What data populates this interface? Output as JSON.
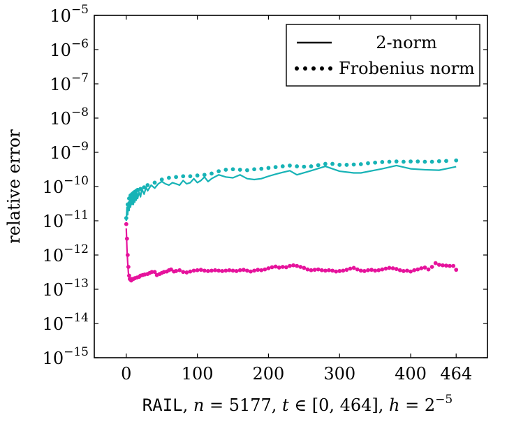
{
  "chart_data": {
    "type": "line",
    "yscale": "log",
    "xlim": [
      -45,
      508
    ],
    "ylim_exponents": [
      -15,
      -5
    ],
    "x_ticks": [
      0,
      100,
      200,
      300,
      400,
      464
    ],
    "x_tick_labels": [
      "0",
      "100",
      "200",
      "300",
      "400",
      "464"
    ],
    "y_tick_exponents": [
      -15,
      -14,
      -13,
      -12,
      -11,
      -10,
      -9,
      -8,
      -7,
      -6,
      -5
    ],
    "y_tick_labels": [
      "−15",
      "−14",
      "−13",
      "−12",
      "−11",
      "−10",
      "−9",
      "−8",
      "−7",
      "−6",
      "−5"
    ],
    "y_tick_base": "10",
    "ylabel": "relative error",
    "xlabel": {
      "code": "RAIL",
      "n_var": "n",
      "n_rest": " = 5177, ",
      "t_var": "t",
      "t_rest": " ∈ [0, 464], ",
      "h_var": "h",
      "h_rest": " = 2",
      "h_exp": "−5"
    },
    "legend": {
      "position": "top-right",
      "entries": [
        {
          "label": "2-norm",
          "style": "solid"
        },
        {
          "label": "Frobenius norm",
          "style": "dotted"
        }
      ]
    },
    "series": [
      {
        "color": "#17b3b6",
        "style": "solid",
        "x": [
          0,
          1,
          2,
          3,
          4,
          5,
          6,
          7,
          8,
          9,
          10,
          11,
          12,
          13,
          14,
          15,
          16,
          18,
          20,
          22,
          25,
          28,
          30,
          35,
          40,
          45,
          50,
          55,
          60,
          65,
          70,
          75,
          80,
          85,
          90,
          95,
          100,
          105,
          110,
          115,
          120,
          130,
          140,
          150,
          160,
          170,
          180,
          190,
          200,
          210,
          220,
          230,
          240,
          260,
          280,
          300,
          320,
          330,
          360,
          380,
          400,
          420,
          440,
          464
        ],
        "y": [
          1e-11,
          2.5e-11,
          1.5e-11,
          3.5e-11,
          2e-11,
          4.5e-11,
          2.5e-11,
          5e-11,
          3e-11,
          5.5e-11,
          3e-11,
          6e-11,
          3.5e-11,
          6.5e-11,
          4e-11,
          6.5e-11,
          4.5e-11,
          7e-11,
          5e-11,
          8.5e-11,
          6e-11,
          9.5e-11,
          7.5e-11,
          1.1e-10,
          9e-11,
          1.2e-10,
          1.4e-10,
          1.2e-10,
          1.1e-10,
          1.3e-10,
          1.2e-10,
          1.1e-10,
          1.5e-10,
          1.2e-10,
          1.3e-10,
          1.7e-10,
          1.3e-10,
          1.5e-10,
          1.9e-10,
          1.4e-10,
          1.7e-10,
          2.2e-10,
          1.9e-10,
          1.8e-10,
          2.2e-10,
          1.7e-10,
          1.6e-10,
          1.7e-10,
          2e-10,
          2.3e-10,
          2.6e-10,
          2.9e-10,
          2.2e-10,
          2.9e-10,
          3.9e-10,
          2.8e-10,
          2.5e-10,
          2.5e-10,
          3.3e-10,
          4.1e-10,
          3.3e-10,
          3.1e-10,
          3e-10,
          3.8e-10
        ]
      },
      {
        "color": "#17b3b6",
        "style": "dotted",
        "x": [
          0,
          2,
          4,
          6,
          8,
          10,
          12,
          14,
          16,
          20,
          25,
          30,
          40,
          50,
          60,
          70,
          80,
          90,
          100,
          110,
          120,
          130,
          140,
          150,
          160,
          170,
          180,
          190,
          200,
          210,
          220,
          230,
          240,
          250,
          260,
          270,
          280,
          290,
          300,
          310,
          320,
          330,
          340,
          350,
          360,
          370,
          380,
          390,
          400,
          410,
          420,
          430,
          440,
          450,
          464
        ],
        "y": [
          1.2e-11,
          3e-11,
          4.5e-11,
          5.5e-11,
          6e-11,
          6.5e-11,
          7e-11,
          7.5e-11,
          8e-11,
          8.5e-11,
          9.5e-11,
          1.1e-10,
          1.3e-10,
          1.6e-10,
          1.8e-10,
          1.9e-10,
          2e-10,
          2e-10,
          2.1e-10,
          2.2e-10,
          2.4e-10,
          2.8e-10,
          3.1e-10,
          3.2e-10,
          3.1e-10,
          3e-10,
          3.2e-10,
          3.3e-10,
          3.5e-10,
          3.7e-10,
          3.9e-10,
          4.1e-10,
          3.9e-10,
          3.8e-10,
          3.9e-10,
          4.2e-10,
          4.6e-10,
          4.6e-10,
          4.3e-10,
          4.3e-10,
          4.4e-10,
          4.5e-10,
          4.8e-10,
          5e-10,
          5.2e-10,
          5.3e-10,
          5.4e-10,
          5.3e-10,
          5.4e-10,
          5.4e-10,
          5.3e-10,
          5.3e-10,
          5.5e-10,
          5.6e-10,
          5.8e-10
        ]
      },
      {
        "color": "#e6139c",
        "style": "solid",
        "x": [
          0,
          1,
          2,
          3,
          4,
          5,
          6,
          8,
          10
        ],
        "y": [
          6e-12,
          1.5e-12,
          6e-13,
          3e-13,
          2e-13,
          1.8e-13,
          1.7e-13,
          1.9e-13,
          2e-13
        ]
      },
      {
        "color": "#e6139c",
        "style": "dotted",
        "x": [
          0,
          1,
          2,
          3,
          4,
          5,
          6,
          7,
          8,
          10,
          12,
          15,
          18,
          20,
          23,
          26,
          30,
          33,
          36,
          40,
          43,
          47,
          50,
          53,
          57,
          60,
          63,
          67,
          70,
          75,
          80,
          85,
          90,
          95,
          100,
          105,
          110,
          115,
          120,
          125,
          130,
          135,
          140,
          145,
          150,
          155,
          160,
          165,
          170,
          175,
          180,
          185,
          190,
          195,
          200,
          205,
          210,
          215,
          220,
          225,
          230,
          235,
          240,
          245,
          250,
          255,
          260,
          265,
          270,
          275,
          280,
          285,
          290,
          295,
          300,
          305,
          310,
          315,
          320,
          325,
          330,
          335,
          340,
          345,
          350,
          355,
          360,
          365,
          370,
          375,
          380,
          385,
          390,
          395,
          400,
          405,
          410,
          415,
          420,
          425,
          430,
          435,
          440,
          445,
          450,
          455,
          460,
          464
        ],
        "y": [
          8e-12,
          3e-12,
          1e-12,
          4.5e-13,
          2.5e-13,
          2e-13,
          1.9e-13,
          1.8e-13,
          2e-13,
          2e-13,
          2.1e-13,
          2.2e-13,
          2.3e-13,
          2.5e-13,
          2.6e-13,
          2.7e-13,
          2.8e-13,
          3e-13,
          3.2e-13,
          3.2e-13,
          2.6e-13,
          2.8e-13,
          3e-13,
          3.2e-13,
          3.3e-13,
          3.6e-13,
          3.8e-13,
          3.3e-13,
          3.4e-13,
          3.6e-13,
          3.2e-13,
          3.1e-13,
          3.3e-13,
          3.5e-13,
          3.6e-13,
          3.7e-13,
          3.5e-13,
          3.4e-13,
          3.5e-13,
          3.6e-13,
          3.5e-13,
          3.4e-13,
          3.5e-13,
          3.6e-13,
          3.5e-13,
          3.4e-13,
          3.6e-13,
          3.7e-13,
          3.5e-13,
          3.3e-13,
          3.5e-13,
          3.7e-13,
          3.6e-13,
          3.8e-13,
          4.1e-13,
          4.4e-13,
          4.6e-13,
          4.3e-13,
          4.5e-13,
          4.4e-13,
          4.8e-13,
          5e-13,
          4.8e-13,
          4.5e-13,
          4.2e-13,
          3.8e-13,
          3.6e-13,
          3.7e-13,
          3.8e-13,
          3.6e-13,
          3.5e-13,
          3.6e-13,
          3.5e-13,
          3.3e-13,
          3.4e-13,
          3.5e-13,
          3.7e-13,
          4e-13,
          4.2e-13,
          3.8e-13,
          3.5e-13,
          3.4e-13,
          3.6e-13,
          3.7e-13,
          3.5e-13,
          3.6e-13,
          3.8e-13,
          4e-13,
          4.2e-13,
          4.1e-13,
          3.9e-13,
          3.6e-13,
          3.4e-13,
          3.5e-13,
          3.3e-13,
          3.6e-13,
          3.8e-13,
          4.1e-13,
          4.3e-13,
          3.8e-13,
          4.5e-13,
          5.8e-13,
          5.2e-13,
          5e-13,
          4.9e-13,
          4.8e-13,
          4.8e-13,
          3.7e-13
        ]
      }
    ],
    "grid": false
  }
}
